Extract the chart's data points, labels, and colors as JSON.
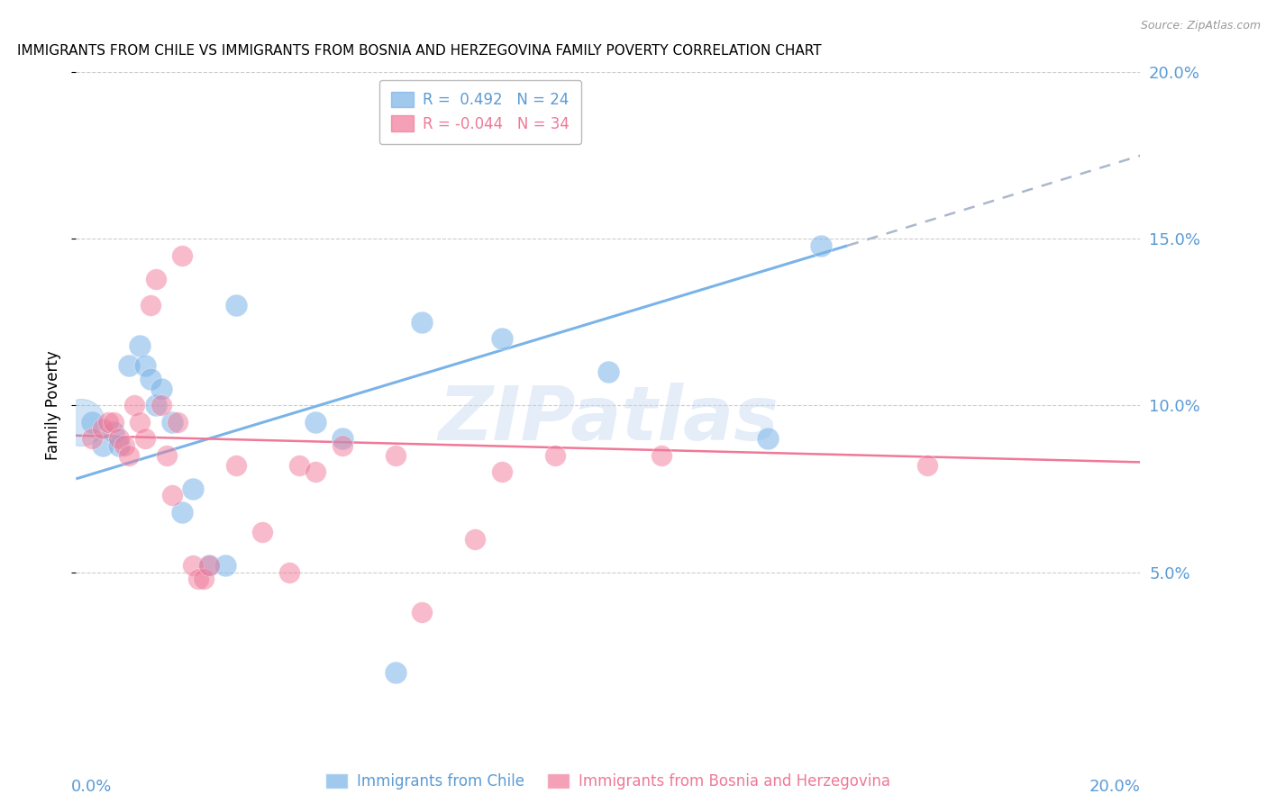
{
  "title": "IMMIGRANTS FROM CHILE VS IMMIGRANTS FROM BOSNIA AND HERZEGOVINA FAMILY POVERTY CORRELATION CHART",
  "source": "Source: ZipAtlas.com",
  "ylabel": "Family Poverty",
  "xlim": [
    0.0,
    0.2
  ],
  "ylim": [
    0.0,
    0.2
  ],
  "yticks": [
    0.05,
    0.1,
    0.15,
    0.2
  ],
  "right_ytick_labels": [
    "5.0%",
    "10.0%",
    "15.0%",
    "20.0%"
  ],
  "chile_color": "#7ab3e8",
  "bosnia_color": "#f07898",
  "chile_R": 0.492,
  "chile_N": 24,
  "bosnia_R": -0.044,
  "bosnia_N": 34,
  "chile_points": [
    [
      0.003,
      0.095
    ],
    [
      0.005,
      0.088
    ],
    [
      0.007,
      0.092
    ],
    [
      0.008,
      0.088
    ],
    [
      0.01,
      0.112
    ],
    [
      0.012,
      0.118
    ],
    [
      0.013,
      0.112
    ],
    [
      0.014,
      0.108
    ],
    [
      0.015,
      0.1
    ],
    [
      0.016,
      0.105
    ],
    [
      0.018,
      0.095
    ],
    [
      0.02,
      0.068
    ],
    [
      0.022,
      0.075
    ],
    [
      0.025,
      0.052
    ],
    [
      0.028,
      0.052
    ],
    [
      0.03,
      0.13
    ],
    [
      0.045,
      0.095
    ],
    [
      0.05,
      0.09
    ],
    [
      0.06,
      0.02
    ],
    [
      0.065,
      0.125
    ],
    [
      0.08,
      0.12
    ],
    [
      0.1,
      0.11
    ],
    [
      0.13,
      0.09
    ],
    [
      0.14,
      0.148
    ]
  ],
  "bosnia_points": [
    [
      0.003,
      0.09
    ],
    [
      0.005,
      0.093
    ],
    [
      0.006,
      0.095
    ],
    [
      0.007,
      0.095
    ],
    [
      0.008,
      0.09
    ],
    [
      0.009,
      0.088
    ],
    [
      0.01,
      0.085
    ],
    [
      0.011,
      0.1
    ],
    [
      0.012,
      0.095
    ],
    [
      0.013,
      0.09
    ],
    [
      0.014,
      0.13
    ],
    [
      0.015,
      0.138
    ],
    [
      0.016,
      0.1
    ],
    [
      0.017,
      0.085
    ],
    [
      0.018,
      0.073
    ],
    [
      0.019,
      0.095
    ],
    [
      0.02,
      0.145
    ],
    [
      0.022,
      0.052
    ],
    [
      0.023,
      0.048
    ],
    [
      0.024,
      0.048
    ],
    [
      0.025,
      0.052
    ],
    [
      0.03,
      0.082
    ],
    [
      0.035,
      0.062
    ],
    [
      0.04,
      0.05
    ],
    [
      0.042,
      0.082
    ],
    [
      0.045,
      0.08
    ],
    [
      0.05,
      0.088
    ],
    [
      0.06,
      0.085
    ],
    [
      0.065,
      0.038
    ],
    [
      0.075,
      0.06
    ],
    [
      0.08,
      0.08
    ],
    [
      0.09,
      0.085
    ],
    [
      0.11,
      0.085
    ],
    [
      0.16,
      0.082
    ]
  ],
  "chile_line_solid": {
    "x0": 0.0,
    "y0": 0.078,
    "x1": 0.145,
    "y1": 0.148
  },
  "chile_line_dashed": {
    "x0": 0.145,
    "y0": 0.148,
    "x1": 0.2,
    "y1": 0.175
  },
  "bosnia_line": {
    "x0": 0.0,
    "y0": 0.091,
    "x1": 0.2,
    "y1": 0.083
  },
  "watermark": "ZIPatlas",
  "background_color": "#ffffff",
  "grid_color": "#cccccc",
  "title_fontsize": 11,
  "axis_label_color": "#5b9bd5",
  "legend_chile_label": "R =  0.492   N = 24",
  "legend_bosnia_label": "R = -0.044   N = 34",
  "bottom_legend_chile": "Immigrants from Chile",
  "bottom_legend_bosnia": "Immigrants from Bosnia and Herzegovina"
}
